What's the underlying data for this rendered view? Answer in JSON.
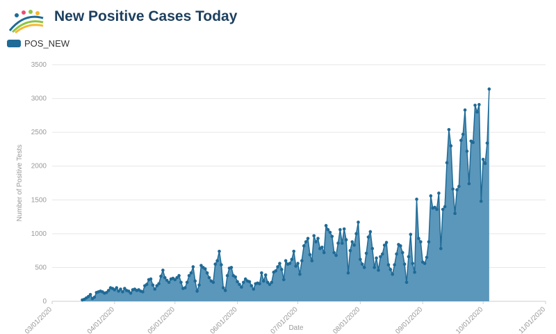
{
  "chart_data": {
    "type": "area",
    "title": "New Positive Cases Today",
    "x_label": "Date",
    "y_label": "Number of Positive Tests",
    "series": [
      {
        "name": "POS_NEW",
        "color": "#1f6a96",
        "fill": "#5b97bb",
        "x": [
          "03/16/2020",
          "03/17/2020",
          "03/18/2020",
          "03/19/2020",
          "03/20/2020",
          "03/21/2020",
          "03/22/2020",
          "03/23/2020",
          "03/24/2020",
          "03/25/2020",
          "03/26/2020",
          "03/27/2020",
          "03/28/2020",
          "03/29/2020",
          "03/30/2020",
          "03/31/2020",
          "04/01/2020",
          "04/02/2020",
          "04/03/2020",
          "04/04/2020",
          "04/05/2020",
          "04/06/2020",
          "04/07/2020",
          "04/08/2020",
          "04/09/2020",
          "04/10/2020",
          "04/11/2020",
          "04/12/2020",
          "04/13/2020",
          "04/14/2020",
          "04/15/2020",
          "04/16/2020",
          "04/17/2020",
          "04/18/2020",
          "04/19/2020",
          "04/20/2020",
          "04/21/2020",
          "04/22/2020",
          "04/23/2020",
          "04/24/2020",
          "04/25/2020",
          "04/26/2020",
          "04/27/2020",
          "04/28/2020",
          "04/29/2020",
          "04/30/2020",
          "05/01/2020",
          "05/02/2020",
          "05/03/2020",
          "05/04/2020",
          "05/05/2020",
          "05/06/2020",
          "05/07/2020",
          "05/08/2020",
          "05/09/2020",
          "05/10/2020",
          "05/11/2020",
          "05/12/2020",
          "05/13/2020",
          "05/14/2020",
          "05/15/2020",
          "05/16/2020",
          "05/17/2020",
          "05/18/2020",
          "05/19/2020",
          "05/20/2020",
          "05/21/2020",
          "05/22/2020",
          "05/23/2020",
          "05/24/2020",
          "05/25/2020",
          "05/26/2020",
          "05/27/2020",
          "05/28/2020",
          "05/29/2020",
          "05/30/2020",
          "05/31/2020",
          "06/01/2020",
          "06/02/2020",
          "06/03/2020",
          "06/04/2020",
          "06/05/2020",
          "06/06/2020",
          "06/07/2020",
          "06/08/2020",
          "06/09/2020",
          "06/10/2020",
          "06/11/2020",
          "06/12/2020",
          "06/13/2020",
          "06/14/2020",
          "06/15/2020",
          "06/16/2020",
          "06/17/2020",
          "06/18/2020",
          "06/19/2020",
          "06/20/2020",
          "06/21/2020",
          "06/22/2020",
          "06/23/2020",
          "06/24/2020",
          "06/25/2020",
          "06/26/2020",
          "06/27/2020",
          "06/28/2020",
          "06/29/2020",
          "06/30/2020",
          "07/01/2020",
          "07/02/2020",
          "07/03/2020",
          "07/04/2020",
          "07/05/2020",
          "07/06/2020",
          "07/07/2020",
          "07/08/2020",
          "07/09/2020",
          "07/10/2020",
          "07/11/2020",
          "07/12/2020",
          "07/13/2020",
          "07/14/2020",
          "07/15/2020",
          "07/16/2020",
          "07/17/2020",
          "07/18/2020",
          "07/19/2020",
          "07/20/2020",
          "07/21/2020",
          "07/22/2020",
          "07/23/2020",
          "07/24/2020",
          "07/25/2020",
          "07/26/2020",
          "07/27/2020",
          "07/28/2020",
          "07/29/2020",
          "07/30/2020",
          "07/31/2020",
          "08/01/2020",
          "08/02/2020",
          "08/03/2020",
          "08/04/2020",
          "08/05/2020",
          "08/06/2020",
          "08/07/2020",
          "08/08/2020",
          "08/09/2020",
          "08/10/2020",
          "08/11/2020",
          "08/12/2020",
          "08/13/2020",
          "08/14/2020",
          "08/15/2020",
          "08/16/2020",
          "08/17/2020",
          "08/18/2020",
          "08/19/2020",
          "08/20/2020",
          "08/21/2020",
          "08/22/2020",
          "08/23/2020",
          "08/24/2020",
          "08/25/2020",
          "08/26/2020",
          "08/27/2020",
          "08/28/2020",
          "08/29/2020",
          "08/30/2020",
          "08/31/2020",
          "09/01/2020",
          "09/02/2020",
          "09/03/2020",
          "09/04/2020",
          "09/05/2020",
          "09/06/2020",
          "09/07/2020",
          "09/08/2020",
          "09/09/2020",
          "09/10/2020",
          "09/11/2020",
          "09/12/2020",
          "09/13/2020",
          "09/14/2020",
          "09/15/2020",
          "09/16/2020",
          "09/17/2020",
          "09/18/2020",
          "09/19/2020",
          "09/20/2020",
          "09/21/2020",
          "09/22/2020",
          "09/23/2020",
          "09/24/2020",
          "09/25/2020",
          "09/26/2020",
          "09/27/2020",
          "09/28/2020",
          "09/29/2020",
          "09/30/2020",
          "10/01/2020",
          "10/02/2020",
          "10/03/2020",
          "10/04/2020"
        ],
        "values": [
          20,
          30,
          50,
          70,
          100,
          40,
          60,
          130,
          140,
          150,
          140,
          120,
          130,
          160,
          200,
          190,
          170,
          200,
          150,
          180,
          140,
          190,
          160,
          150,
          120,
          170,
          180,
          160,
          170,
          150,
          140,
          230,
          250,
          320,
          330,
          240,
          180,
          230,
          260,
          370,
          460,
          350,
          310,
          280,
          330,
          340,
          320,
          350,
          380,
          280,
          190,
          200,
          280,
          380,
          420,
          510,
          300,
          150,
          240,
          530,
          500,
          480,
          420,
          350,
          300,
          280,
          550,
          600,
          740,
          540,
          200,
          160,
          380,
          490,
          500,
          380,
          360,
          290,
          250,
          210,
          280,
          330,
          300,
          290,
          230,
          180,
          260,
          270,
          260,
          420,
          300,
          390,
          280,
          250,
          280,
          430,
          450,
          510,
          560,
          470,
          320,
          600,
          550,
          560,
          620,
          740,
          520,
          560,
          400,
          600,
          820,
          880,
          930,
          690,
          600,
          970,
          880,
          930,
          780,
          800,
          720,
          1120,
          1060,
          1020,
          960,
          720,
          680,
          860,
          1060,
          860,
          1070,
          910,
          420,
          750,
          880,
          830,
          1000,
          1170,
          620,
          550,
          500,
          710,
          950,
          1030,
          780,
          500,
          640,
          460,
          660,
          700,
          830,
          870,
          540,
          470,
          400,
          540,
          700,
          840,
          820,
          720,
          550,
          280,
          660,
          990,
          560,
          430,
          1510,
          930,
          880,
          580,
          560,
          650,
          880,
          1560,
          1380,
          1390,
          1360,
          1600,
          780,
          1360,
          1400,
          2050,
          2540,
          2300,
          1660,
          1300,
          1650,
          1700,
          2380,
          2470,
          2830,
          2220,
          1740,
          2370,
          2350,
          2900,
          2800,
          2910,
          1480,
          2100,
          2040,
          2340,
          3140
        ]
      }
    ],
    "xlim": [
      "03/01/2020",
      "11/01/2020"
    ],
    "xticks": [
      "03/01/2020",
      "04/01/2020",
      "05/01/2020",
      "06/01/2020",
      "07/01/2020",
      "08/01/2020",
      "09/01/2020",
      "10/01/2020",
      "11/01/2020"
    ],
    "ylim": [
      0,
      3500
    ],
    "yticks": [
      0,
      500,
      1000,
      1500,
      2000,
      2500,
      3000,
      3500
    ],
    "grid": true
  }
}
